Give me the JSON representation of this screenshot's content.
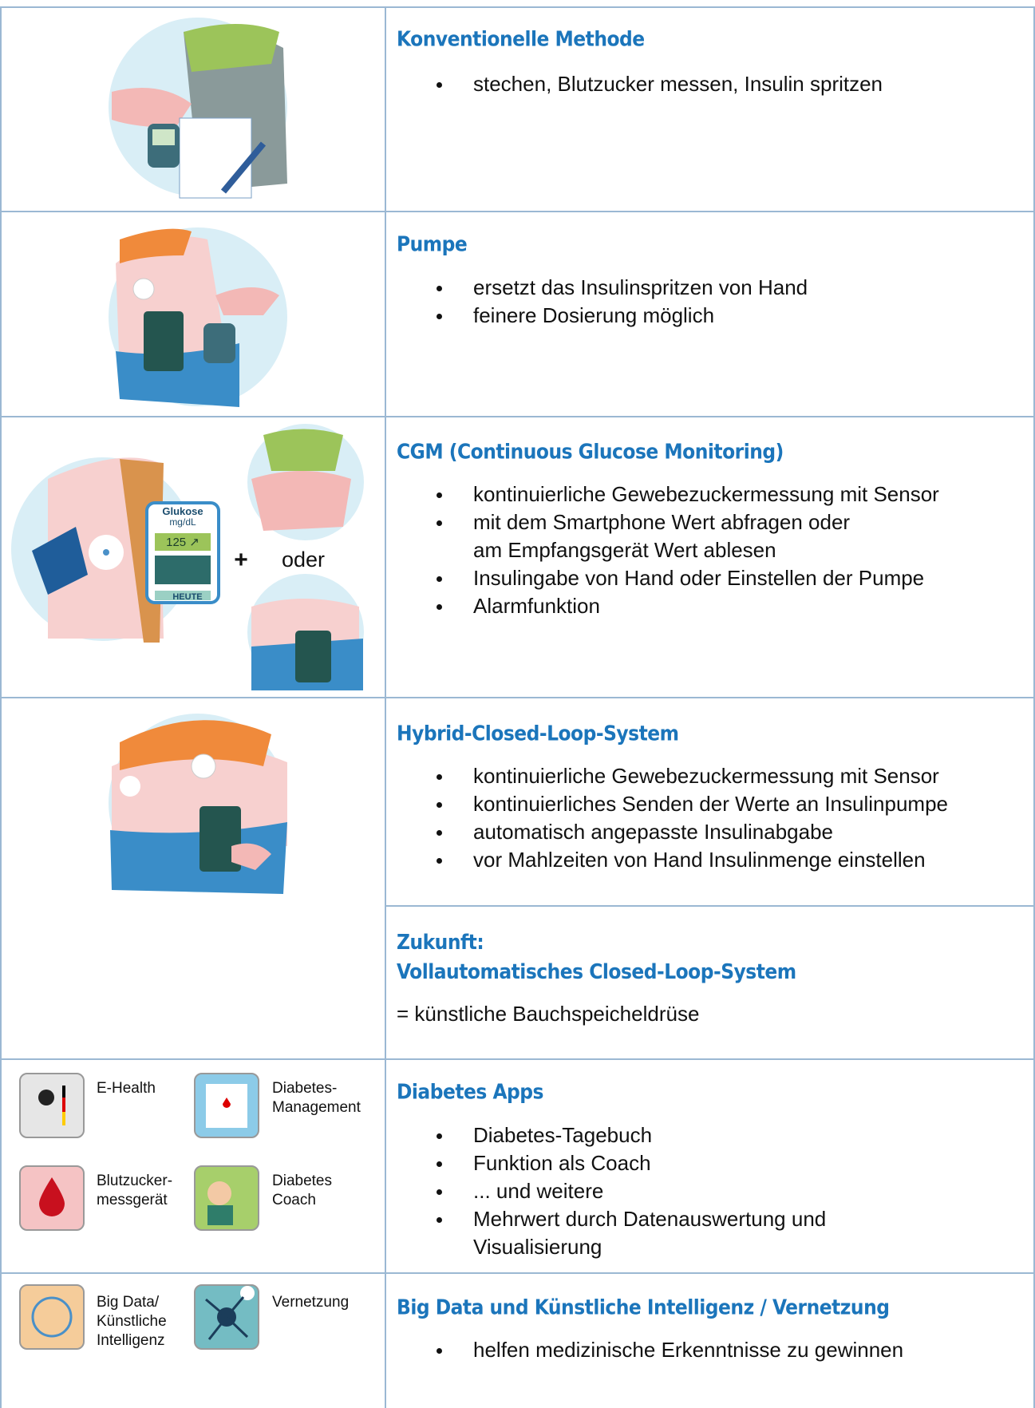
{
  "rows": [
    {
      "title": "Konventionelle Methode",
      "bullets": [
        "stechen, Blutzucker messen, Insulin spritzen"
      ]
    },
    {
      "title": "Pumpe",
      "bullets": [
        "ersetzt das Insulinspritzen von Hand",
        "feinere Dosierung möglich"
      ]
    },
    {
      "title": "CGM (Continuous Glucose Monitoring)",
      "bullets": [
        "kontinuierliche Gewebezuckermessung mit Sensor",
        "mit dem Smartphone Wert abfragen oder\nam Empfangsgerät Wert ablesen",
        "Insulingabe von Hand oder Einstellen der Pumpe",
        "Alarmfunktion"
      ],
      "illustration": {
        "device_label": "Glukose",
        "unit": "mg/dL",
        "reading": "125 ↗",
        "button": "HEUTE",
        "plus": "+",
        "or": "oder"
      }
    },
    {
      "title": "Hybrid-Closed-Loop-System",
      "bullets": [
        "kontinuierliche Gewebezuckermessung mit Sensor",
        "kontinuierliches Senden der Werte an Insulinpumpe",
        "automatisch angepasste Insulinabgabe",
        "vor Mahlzeiten von Hand Insulinmenge einstellen"
      ]
    },
    {
      "title": "Zukunft:\nVollautomatisches Closed-Loop-System",
      "text": "= künstliche Bauchspeicheldrüse"
    },
    {
      "title": "Diabetes Apps",
      "bullets": [
        "Diabetes-Tagebuch",
        "Funktion als Coach",
        "... und weitere",
        "Mehrwert durch Datenauswertung und\nVisualisierung"
      ],
      "apps": [
        "E-Health",
        "Diabetes-\nManagement",
        "Blutzucker-\nmessgerät",
        "Diabetes\nCoach"
      ]
    },
    {
      "title": "Big Data und Künstliche Intelligenz / Vernetzung",
      "bullets": [
        "helfen medizinische Erkenntnisse zu gewinnen"
      ],
      "apps": [
        "Big Data/\nKünstliche\nIntelligenz",
        "Vernetzung"
      ]
    }
  ]
}
